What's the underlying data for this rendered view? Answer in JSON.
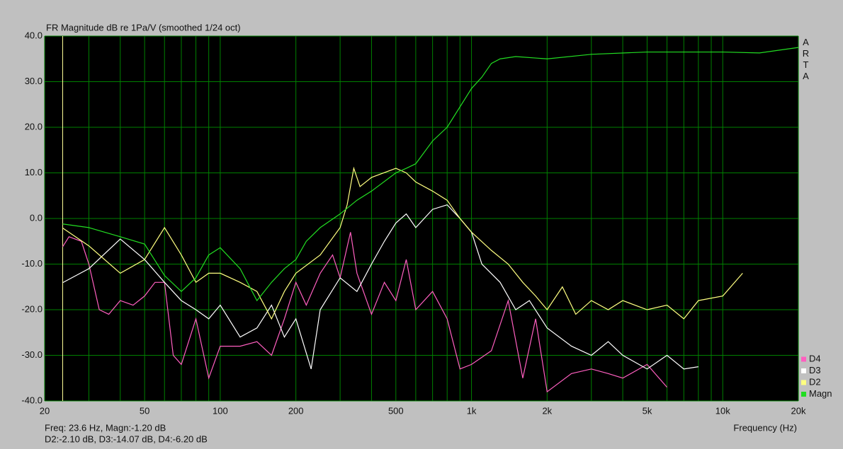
{
  "chart_data": {
    "type": "line",
    "title": "FR Magnitude dB re 1Pa/V (smoothed 1/24 oct)",
    "xlabel": "Frequency (Hz)",
    "watermark": "ARTA",
    "xscale": "log",
    "xlim": [
      20,
      20000
    ],
    "ylim": [
      -40,
      40
    ],
    "xticks": [
      20,
      50,
      100,
      200,
      500,
      {
        "value": 1000,
        "label": "1k"
      },
      {
        "value": 2000,
        "label": "2k"
      },
      {
        "value": 5000,
        "label": "5k"
      },
      {
        "value": 10000,
        "label": "10k"
      },
      {
        "value": 20000,
        "label": "20k"
      }
    ],
    "x_minor_grid": [
      30,
      40,
      60,
      70,
      80,
      90,
      300,
      400,
      600,
      700,
      800,
      900,
      3000,
      4000,
      6000,
      7000,
      8000,
      9000
    ],
    "yticks": [
      {
        "value": -40,
        "label": "-40.0"
      },
      {
        "value": -30,
        "label": "-30.0"
      },
      {
        "value": -20,
        "label": "-20.0"
      },
      {
        "value": -10,
        "label": "-10.0"
      },
      {
        "value": 0,
        "label": "0.0"
      },
      {
        "value": 10,
        "label": "10.0"
      },
      {
        "value": 20,
        "label": "20.0"
      },
      {
        "value": 30,
        "label": "30.0"
      },
      {
        "value": 40,
        "label": "40.0"
      }
    ],
    "grid": true,
    "grid_color": "#008000",
    "background": "#000000",
    "legend": "bottom-right",
    "cursor_x": 23.6,
    "cursor_color": "#ffff99",
    "cursor_readout": [
      "Freq: 23.6 Hz, Magn:-1.20 dB",
      "D2:-2.10 dB, D3:-14.07 dB, D4:-6.20 dB"
    ],
    "series": [
      {
        "name": "D4",
        "color": "#ff5fc0",
        "x": [
          23.6,
          25,
          28,
          30,
          33,
          36,
          40,
          45,
          50,
          55,
          60,
          65,
          70,
          80,
          90,
          100,
          120,
          140,
          160,
          180,
          200,
          220,
          250,
          280,
          300,
          330,
          350,
          400,
          450,
          500,
          550,
          600,
          700,
          800,
          900,
          1000,
          1200,
          1400,
          1600,
          1800,
          2000,
          2500,
          3000,
          3500,
          4000,
          5000,
          6000
        ],
        "values": [
          -6.2,
          -4,
          -5,
          -10,
          -20,
          -21,
          -18,
          -19,
          -17,
          -14,
          -14,
          -30,
          -32,
          -22,
          -35,
          -28,
          -28,
          -27,
          -30,
          -22,
          -14,
          -19,
          -12,
          -8,
          -13,
          -3,
          -12,
          -21,
          -14,
          -18,
          -9,
          -20,
          -16,
          -22,
          -33,
          -32,
          -29,
          -18,
          -35,
          -22,
          -38,
          -34,
          -33,
          -34,
          -35,
          -32,
          -37
        ]
      },
      {
        "name": "D3",
        "color": "#ffffff",
        "x": [
          23.6,
          30,
          40,
          50,
          60,
          70,
          80,
          90,
          100,
          120,
          140,
          160,
          180,
          200,
          230,
          250,
          300,
          350,
          400,
          450,
          500,
          550,
          600,
          700,
          800,
          900,
          1000,
          1100,
          1300,
          1500,
          1700,
          2000,
          2500,
          3000,
          3500,
          4000,
          5000,
          6000,
          7000,
          8000
        ],
        "values": [
          -14.07,
          -11,
          -4.5,
          -9,
          -14,
          -18,
          -20,
          -22,
          -19,
          -26,
          -24,
          -19,
          -26,
          -22,
          -33,
          -20,
          -13,
          -16,
          -10,
          -5,
          -1,
          1,
          -2,
          2,
          3,
          0,
          -3,
          -10,
          -14,
          -20,
          -18,
          -24,
          -28,
          -30,
          -27,
          -30,
          -33,
          -30,
          -33,
          -32.5
        ]
      },
      {
        "name": "D2",
        "color": "#ffff80",
        "x": [
          23.6,
          30,
          40,
          50,
          60,
          70,
          80,
          90,
          100,
          120,
          140,
          160,
          180,
          200,
          250,
          300,
          320,
          340,
          360,
          400,
          500,
          550,
          600,
          700,
          800,
          900,
          1000,
          1200,
          1400,
          1600,
          1800,
          2000,
          2300,
          2600,
          3000,
          3500,
          4000,
          5000,
          6000,
          7000,
          8000,
          10000,
          12000
        ],
        "values": [
          -2.1,
          -6,
          -12,
          -9,
          -2,
          -8,
          -14,
          -12,
          -12,
          -14,
          -16,
          -22,
          -16,
          -12,
          -8,
          -2,
          3,
          11,
          7,
          9,
          11,
          10,
          8,
          6,
          4,
          0,
          -3,
          -7,
          -10,
          -14,
          -17,
          -20,
          -15,
          -21,
          -18,
          -20,
          -18,
          -20,
          -19,
          -22,
          -18,
          -17,
          -12
        ]
      },
      {
        "name": "Magn",
        "color": "#22dd22",
        "x": [
          23.6,
          30,
          40,
          50,
          60,
          70,
          80,
          90,
          100,
          120,
          140,
          160,
          180,
          200,
          220,
          250,
          300,
          350,
          400,
          500,
          550,
          600,
          700,
          800,
          1000,
          1100,
          1200,
          1300,
          1500,
          2000,
          3000,
          5000,
          7000,
          10000,
          14000,
          20000
        ],
        "values": [
          -1.2,
          -2,
          -4,
          -5.6,
          -12.5,
          -16,
          -13,
          -8,
          -6.4,
          -11,
          -18,
          -14,
          -11,
          -9,
          -5,
          -2,
          1,
          4,
          6,
          10,
          11,
          12,
          17,
          20,
          28.5,
          31,
          34,
          35,
          35.5,
          35,
          36,
          36.5,
          36.5,
          36.5,
          36.3,
          37.5
        ]
      }
    ]
  }
}
